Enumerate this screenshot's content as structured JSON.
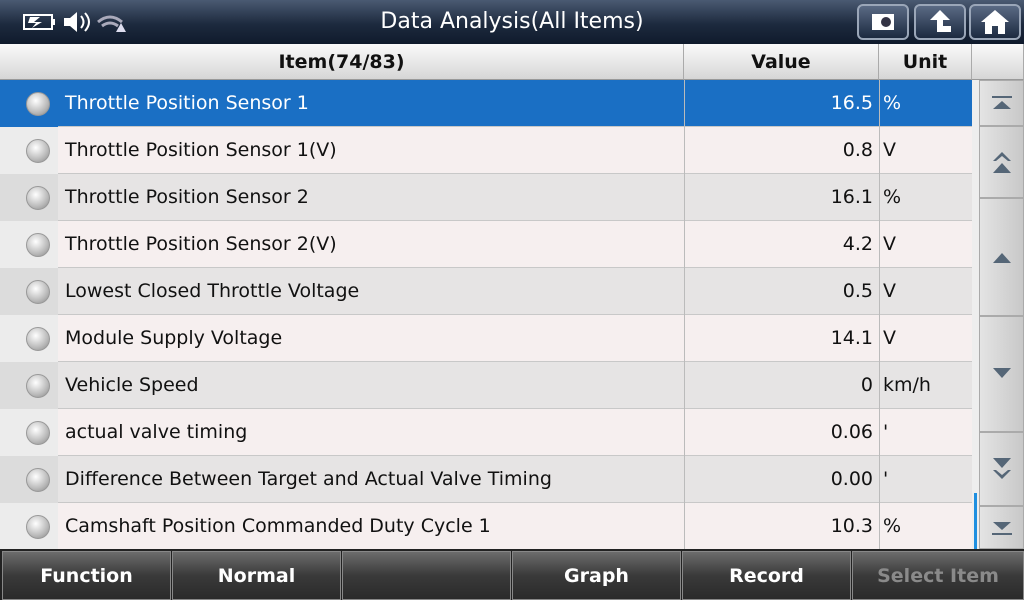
{
  "header": {
    "title": "Data Analysis(All Items)"
  },
  "table": {
    "columns": [
      "Item(74/83)",
      "Value",
      "Unit"
    ],
    "rows": [
      [
        "Throttle Position Sensor 1",
        "16.5",
        "%"
      ],
      [
        "Throttle Position Sensor 1(V)",
        "0.8",
        "V"
      ],
      [
        "Throttle Position Sensor 2",
        "16.1",
        "%"
      ],
      [
        "Throttle Position Sensor 2(V)",
        "4.2",
        "V"
      ],
      [
        "Lowest Closed Throttle Voltage",
        "0.5",
        "V"
      ],
      [
        "Module Supply Voltage",
        "14.1",
        "V"
      ],
      [
        "Vehicle Speed",
        "0",
        "km/h"
      ],
      [
        "actual valve timing",
        "0.06",
        "'"
      ],
      [
        "Difference Between Target and Actual Valve Timing",
        "0.00",
        "'"
      ],
      [
        "Camshaft Position Commanded Duty Cycle 1",
        "10.3",
        "%"
      ]
    ]
  },
  "footer": {
    "buttons": [
      "Function",
      "Normal",
      "Graph",
      "Record",
      "Select Item"
    ]
  }
}
